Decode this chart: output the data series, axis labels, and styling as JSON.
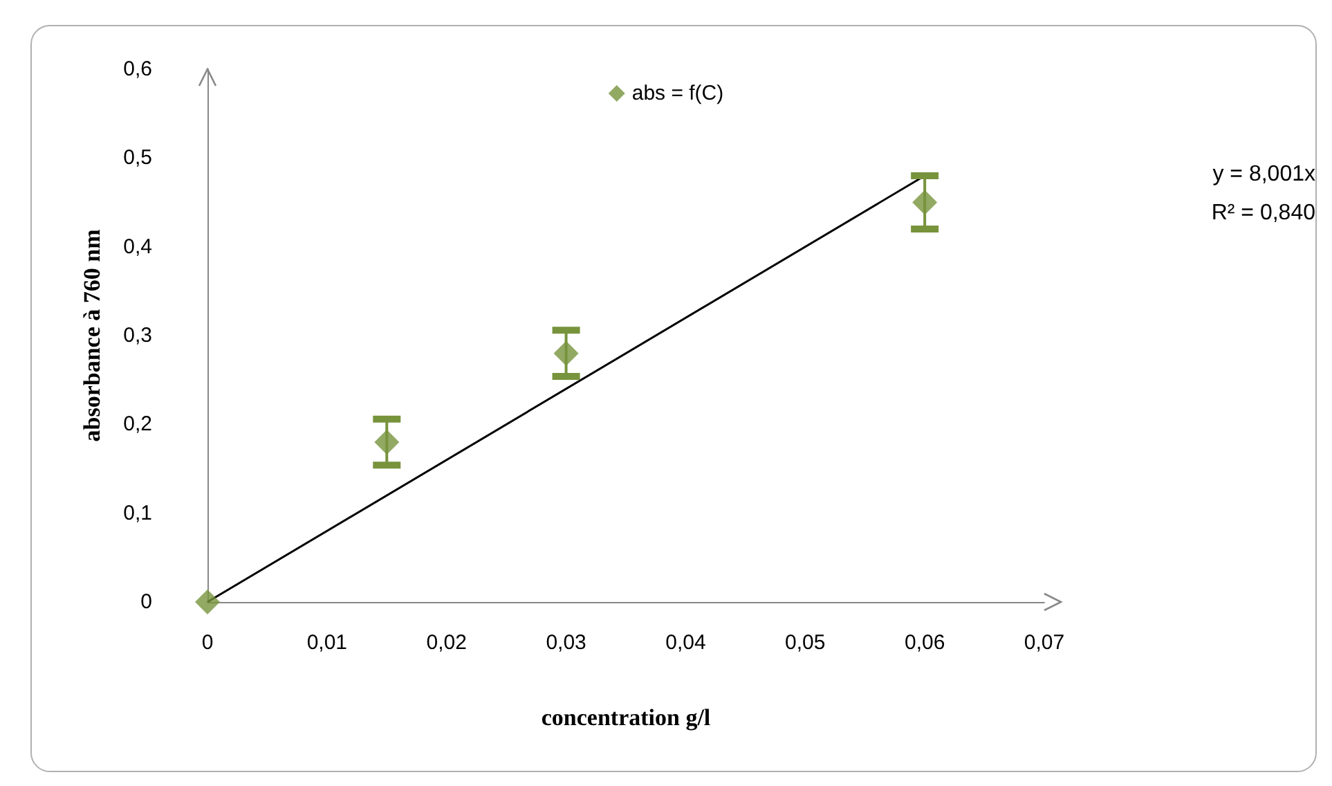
{
  "chart_data": {
    "type": "scatter",
    "xlabel": "concentration g/l",
    "ylabel": "absorbance à 760 nm",
    "series": [
      {
        "name": "abs = f(C)",
        "color": "#77933c",
        "x": [
          0,
          0.015,
          0.03,
          0.06
        ],
        "values": [
          0,
          0.18,
          0.28,
          0.45
        ],
        "errors": [
          null,
          0.026,
          0.026,
          0.03
        ]
      },
      {
        "type": "line",
        "color": "#000000",
        "x": [
          0,
          0.06
        ],
        "values": [
          0,
          0.48
        ],
        "marker": "none"
      }
    ],
    "annotations": [
      "y = 8,001x",
      "R² = 0,840"
    ],
    "xlim": [
      0,
      0.07
    ],
    "xticks": [
      0,
      {
        "value": 0.01,
        "label": "0,01"
      },
      {
        "value": 0.02,
        "label": "0,02"
      },
      {
        "value": 0.03,
        "label": "0,03"
      },
      {
        "value": 0.04,
        "label": "0,04"
      },
      {
        "value": 0.05,
        "label": "0,05"
      },
      {
        "value": 0.06,
        "label": "0,06"
      },
      {
        "value": 0.07,
        "label": "0,07"
      }
    ],
    "ylim": [
      0,
      0.6
    ],
    "yticks": [
      0,
      {
        "value": 0.1,
        "label": "0,1"
      },
      {
        "value": 0.2,
        "label": "0,2"
      },
      {
        "value": 0.3,
        "label": "0,3"
      },
      {
        "value": 0.4,
        "label": "0,4"
      },
      {
        "value": 0.5,
        "label": "0,5"
      },
      {
        "value": 0.6,
        "label": "0,6"
      }
    ],
    "grid": false,
    "legend": "top",
    "marker": "diamond"
  }
}
